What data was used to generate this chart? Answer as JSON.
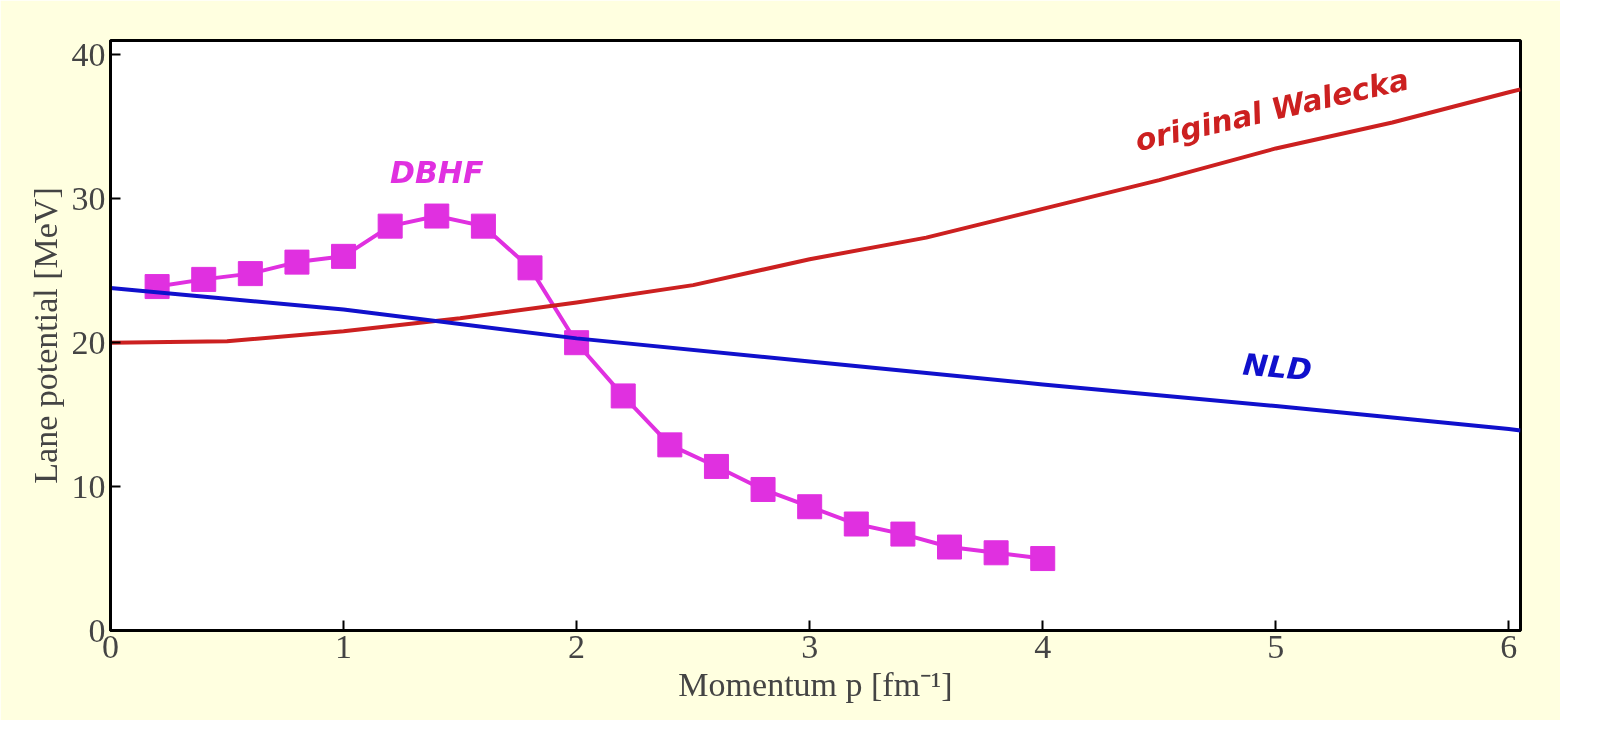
{
  "chart_data": {
    "type": "line",
    "xlabel": "Momentum p [fm⁻¹]",
    "ylabel": "Lane potential [MeV]",
    "xlim": [
      0,
      6.05
    ],
    "ylim": [
      0,
      41
    ],
    "xticks": [
      0,
      1,
      2,
      3,
      4,
      5,
      6
    ],
    "yticks": [
      0,
      10,
      20,
      30,
      40
    ],
    "grid": false,
    "series": [
      {
        "name": "DBHF",
        "color": "#e030e0",
        "marker": "square",
        "x": [
          0.2,
          0.4,
          0.6,
          0.8,
          1.0,
          1.2,
          1.4,
          1.6,
          1.8,
          2.0,
          2.2,
          2.4,
          2.6,
          2.8,
          3.0,
          3.2,
          3.4,
          3.6,
          3.8,
          4.0
        ],
        "values": [
          23.9,
          24.4,
          24.8,
          25.6,
          26.0,
          28.1,
          28.8,
          28.1,
          25.2,
          20.0,
          16.3,
          12.9,
          11.4,
          9.8,
          8.6,
          7.4,
          6.7,
          5.8,
          5.4,
          5.0
        ]
      },
      {
        "name": "original Walecka",
        "color": "#cc2020",
        "marker": "none",
        "x": [
          0,
          0.5,
          1,
          1.5,
          2,
          2.5,
          3,
          3.5,
          4,
          4.5,
          5,
          5.5,
          6,
          6.05
        ],
        "values": [
          20.0,
          20.1,
          20.8,
          21.7,
          22.8,
          24.0,
          25.8,
          27.3,
          29.3,
          31.3,
          33.5,
          35.3,
          37.4,
          37.6
        ]
      },
      {
        "name": "NLD",
        "color": "#1010cc",
        "marker": "none",
        "x": [
          0,
          1,
          2,
          3,
          4,
          5,
          6,
          6.05
        ],
        "values": [
          23.8,
          22.3,
          20.3,
          18.7,
          17.1,
          15.6,
          14.0,
          13.9
        ]
      }
    ]
  }
}
